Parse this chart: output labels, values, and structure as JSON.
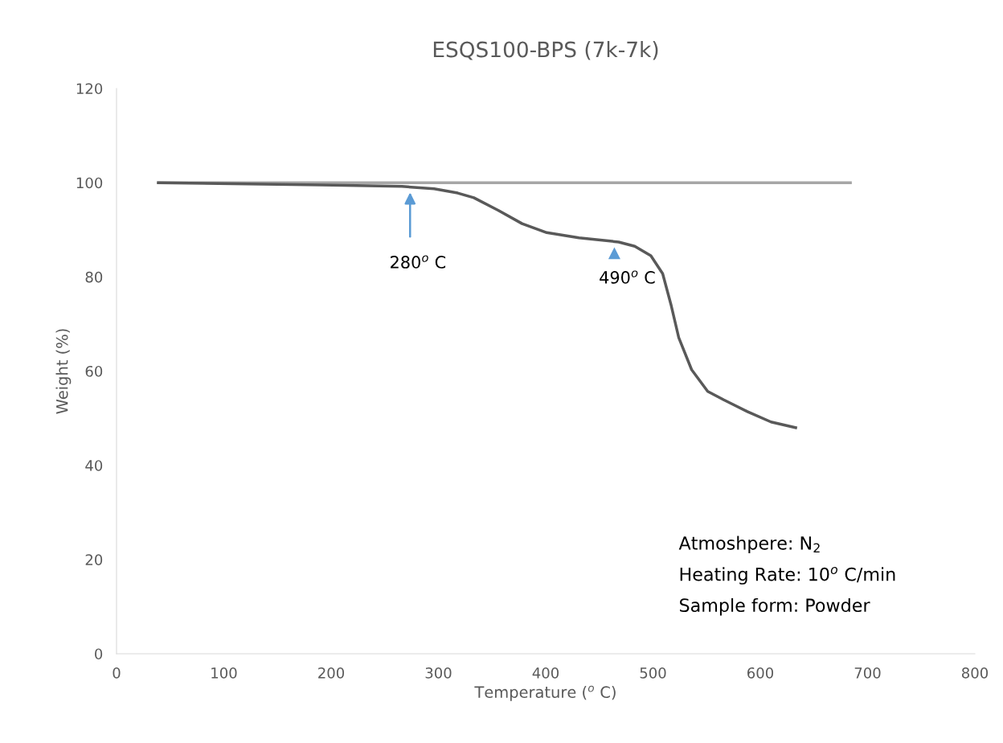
{
  "chart_data": {
    "type": "line",
    "title": "ESQS100-BPS (7k-7k)",
    "xlabel": "Temperature ($^{o}$ C)",
    "ylabel": "Weight (%)",
    "xlim": [
      0,
      800
    ],
    "xticks": [
      0,
      100,
      200,
      300,
      400,
      500,
      600,
      700,
      800
    ],
    "ylim": [
      0,
      120
    ],
    "yticks": [
      0,
      20,
      40,
      60,
      80,
      100,
      120
    ],
    "grid": false,
    "legend": false,
    "marker": "none",
    "line_style": "solid",
    "series": [
      {
        "color": "#a6a6a6",
        "x": [
          39,
          684
        ],
        "values": [
          100,
          100
        ]
      },
      {
        "color": "#595959",
        "x": [
          39,
          191,
          266,
          296,
          318,
          333,
          356,
          378,
          401,
          431,
          468,
          483,
          498,
          509,
          517,
          524,
          536,
          551,
          566,
          588,
          610,
          633
        ],
        "values": [
          100,
          99.5,
          99.2,
          98.7,
          97.8,
          96.8,
          94.1,
          91.3,
          89.4,
          88.3,
          87.4,
          86.5,
          84.5,
          80.7,
          73.9,
          67.1,
          60.3,
          55.7,
          53.9,
          51.4,
          49.2,
          48.0
        ]
      }
    ],
    "annotations": [
      "280$^{o}$ C",
      "490$^{o}$ C",
      "Atmoshpere: N$_{2}$",
      "Heating Rate: 10$^{o}$ C/min",
      "Sample form: Powder"
    ]
  }
}
